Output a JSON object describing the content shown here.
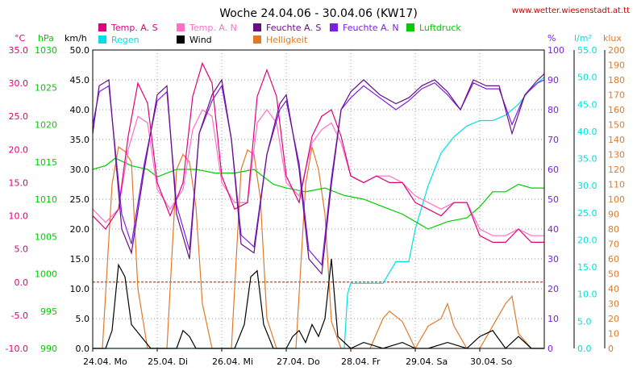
{
  "header": {
    "title": "Woche 24.04.06 - 30.04.06 (KW17)",
    "url": "www.wetter.wiesenstadt.at.tt"
  },
  "colors": {
    "temp_s": "#e0007a",
    "temp_n": "#ff6fc8",
    "feuchte_s": "#6a0e86",
    "feuchte_n": "#7a1ee6",
    "luftdruck": "#00cc00",
    "regen": "#00e0e0",
    "wind": "#000000",
    "helligkeit": "#e07a2a",
    "zero_line": "#cc0000",
    "grid": "#999999"
  },
  "chart_data": {
    "type": "line",
    "axes": {
      "temp": {
        "unit": "°C",
        "range": [
          -10,
          35
        ],
        "step": 5,
        "ticks": [
          "35.0",
          "30.0",
          "25.0",
          "20.0",
          "15.0",
          "10.0",
          "5.0",
          "0.0",
          "-5.0",
          "-10.0"
        ]
      },
      "pressure": {
        "unit": "hPa",
        "range": [
          990,
          1030
        ],
        "step": 5,
        "ticks": [
          "1030",
          "1025",
          "1020",
          "1015",
          "1010",
          "1005",
          "1000",
          "995",
          "990"
        ]
      },
      "wind": {
        "unit": "km/h",
        "range": [
          0,
          50
        ],
        "step": 5,
        "ticks": [
          "50.0",
          "45.0",
          "40.0",
          "35.0",
          "30.0",
          "25.0",
          "20.0",
          "15.0",
          "10.0",
          "5.0",
          "0.0"
        ]
      },
      "humidity": {
        "unit": "%",
        "range": [
          0,
          100
        ],
        "step": 10,
        "ticks": [
          "100",
          "90",
          "80",
          "70",
          "60",
          "50",
          "40",
          "30",
          "20",
          "10",
          "0"
        ]
      },
      "rain": {
        "unit": "l/m²",
        "range": [
          0,
          55
        ],
        "step": 5,
        "ticks": [
          "55.0",
          "50.0",
          "45.0",
          "40.0",
          "35.0",
          "30.0",
          "25.0",
          "20.0",
          "15.0",
          "10.0",
          "5.0",
          "0.0"
        ]
      },
      "light": {
        "unit": "klux",
        "range": [
          0,
          200
        ],
        "step": 10,
        "ticks": [
          "200",
          "190",
          "180",
          "170",
          "160",
          "150",
          "140",
          "130",
          "120",
          "110",
          "100",
          "90",
          "80",
          "70",
          "60",
          "50",
          "40",
          "30",
          "20",
          "10",
          "0"
        ]
      }
    },
    "days": [
      "24.04. Mo",
      "25.04. Di",
      "26.04. Mi",
      "27.04. Do",
      "28.04. Fr",
      "29.04. Sa",
      "30.04. So"
    ],
    "legend": [
      "Temp. A. S",
      "Temp. A. N",
      "Feuchte A. S",
      "Feuchte A. N",
      "Luftdruck",
      "Regen",
      "Wind",
      "Helligkeit"
    ],
    "grid": true,
    "series": [
      {
        "name": "Temp. A. S",
        "axis": "temp",
        "color": "#e0007a",
        "x": [
          0,
          0.2,
          0.4,
          0.55,
          0.7,
          0.85,
          1.0,
          1.2,
          1.4,
          1.55,
          1.7,
          1.85,
          2.0,
          2.2,
          2.4,
          2.55,
          2.7,
          2.85,
          3.0,
          3.2,
          3.4,
          3.55,
          3.7,
          3.85,
          4.0,
          4.2,
          4.4,
          4.6,
          4.8,
          5.0,
          5.2,
          5.4,
          5.6,
          5.8,
          6.0,
          6.2,
          6.4,
          6.6,
          6.8,
          7.0
        ],
        "y": [
          10,
          8,
          11,
          22,
          30,
          27,
          15,
          10,
          15,
          28,
          33,
          30,
          16,
          11,
          12,
          28,
          32,
          28,
          16,
          12,
          22,
          25,
          26,
          22,
          16,
          15,
          16,
          15,
          15,
          12,
          11,
          10,
          12,
          12,
          7,
          6,
          6,
          8,
          6,
          6
        ]
      },
      {
        "name": "Temp. A. N",
        "axis": "temp",
        "color": "#ff6fc8",
        "x": [
          0,
          0.2,
          0.4,
          0.55,
          0.7,
          0.85,
          1.0,
          1.2,
          1.4,
          1.55,
          1.7,
          1.85,
          2.0,
          2.2,
          2.4,
          2.55,
          2.7,
          2.85,
          3.0,
          3.2,
          3.4,
          3.55,
          3.7,
          3.85,
          4.0,
          4.2,
          4.4,
          4.6,
          4.8,
          5.0,
          5.2,
          5.4,
          5.6,
          5.8,
          6.0,
          6.2,
          6.4,
          6.6,
          6.8,
          7.0
        ],
        "y": [
          11,
          9,
          11,
          20,
          25,
          24,
          14,
          11,
          14,
          23,
          26,
          25,
          15,
          12,
          12,
          24,
          26,
          24,
          15,
          13,
          21,
          23,
          24,
          21,
          16,
          15,
          16,
          16,
          15,
          13,
          12,
          11,
          12,
          12,
          8,
          7,
          7,
          8,
          7,
          7
        ]
      },
      {
        "name": "Feuchte A. S",
        "axis": "humidity",
        "color": "#6a0e86",
        "x": [
          0,
          0.1,
          0.25,
          0.45,
          0.6,
          0.8,
          1.0,
          1.15,
          1.3,
          1.5,
          1.65,
          1.85,
          2.0,
          2.15,
          2.3,
          2.5,
          2.7,
          2.9,
          3.0,
          3.2,
          3.35,
          3.55,
          3.7,
          3.85,
          4.0,
          4.2,
          4.45,
          4.7,
          4.9,
          5.1,
          5.3,
          5.5,
          5.7,
          5.9,
          6.1,
          6.3,
          6.5,
          6.7,
          6.9,
          7.0
        ],
        "y": [
          72,
          88,
          90,
          40,
          32,
          60,
          85,
          88,
          45,
          30,
          72,
          85,
          90,
          70,
          35,
          32,
          65,
          82,
          85,
          60,
          30,
          25,
          55,
          80,
          86,
          90,
          85,
          82,
          84,
          88,
          90,
          86,
          80,
          90,
          88,
          88,
          72,
          85,
          90,
          92
        ]
      },
      {
        "name": "Feuchte A. N",
        "axis": "humidity",
        "color": "#7a1ee6",
        "x": [
          0,
          0.1,
          0.25,
          0.45,
          0.6,
          0.8,
          1.0,
          1.15,
          1.3,
          1.5,
          1.65,
          1.85,
          2.0,
          2.15,
          2.3,
          2.5,
          2.7,
          2.9,
          3.0,
          3.2,
          3.35,
          3.55,
          3.7,
          3.85,
          4.0,
          4.2,
          4.45,
          4.7,
          4.9,
          5.1,
          5.3,
          5.5,
          5.7,
          5.9,
          6.1,
          6.3,
          6.5,
          6.7,
          6.9,
          7.0
        ],
        "y": [
          75,
          86,
          88,
          45,
          35,
          62,
          83,
          86,
          48,
          33,
          72,
          83,
          88,
          70,
          38,
          34,
          65,
          80,
          83,
          62,
          33,
          28,
          57,
          80,
          84,
          88,
          84,
          80,
          83,
          87,
          89,
          85,
          80,
          89,
          87,
          87,
          75,
          85,
          89,
          90
        ]
      },
      {
        "name": "Luftdruck",
        "axis": "pressure",
        "color": "#00cc00",
        "x": [
          0,
          0.2,
          0.35,
          0.6,
          0.85,
          1.0,
          1.3,
          1.6,
          1.9,
          2.2,
          2.5,
          2.8,
          3.0,
          3.3,
          3.6,
          3.9,
          4.2,
          4.5,
          4.8,
          5.0,
          5.2,
          5.5,
          5.8,
          6.0,
          6.2,
          6.4,
          6.6,
          6.8,
          7.0
        ],
        "y": [
          1014,
          1014.5,
          1015.5,
          1014.5,
          1014,
          1013,
          1014,
          1014,
          1013.5,
          1013.5,
          1014,
          1012,
          1011.5,
          1011,
          1011.5,
          1010.5,
          1010,
          1009,
          1008,
          1007,
          1006,
          1007,
          1007.5,
          1009,
          1011,
          1011,
          1012,
          1011.5,
          1011.5
        ]
      },
      {
        "name": "Regen",
        "axis": "rain",
        "color": "#00e0e0",
        "x": [
          0,
          3.9,
          3.95,
          4.0,
          4.1,
          4.3,
          4.5,
          4.7,
          4.8,
          4.9,
          5.0,
          5.1,
          5.2,
          5.3,
          5.4,
          5.6,
          5.8,
          6.0,
          6.2,
          6.4,
          6.6,
          6.8,
          7.0
        ],
        "y": [
          0,
          0,
          10,
          12,
          12,
          12,
          12,
          16,
          16,
          16,
          22,
          26,
          30,
          33,
          36,
          39,
          41,
          42,
          42,
          43,
          45,
          48,
          50
        ]
      },
      {
        "name": "Wind",
        "axis": "wind",
        "color": "#000000",
        "x": [
          0,
          0.2,
          0.3,
          0.4,
          0.5,
          0.6,
          0.75,
          0.9,
          1.0,
          1.2,
          1.3,
          1.4,
          1.5,
          1.6,
          1.8,
          2.0,
          2.2,
          2.35,
          2.45,
          2.55,
          2.65,
          2.8,
          3.0,
          3.1,
          3.2,
          3.3,
          3.4,
          3.5,
          3.6,
          3.7,
          3.8,
          4.0,
          4.2,
          4.5,
          4.8,
          5.0,
          5.2,
          5.5,
          5.8,
          6.0,
          6.2,
          6.4,
          6.6,
          6.8,
          7.0
        ],
        "y": [
          0,
          0,
          3,
          14,
          12,
          4,
          2,
          0,
          0,
          0,
          0,
          3,
          2,
          0,
          0,
          0,
          0,
          4,
          12,
          13,
          4,
          0,
          0,
          2,
          3,
          1,
          4,
          2,
          5,
          15,
          2,
          0,
          1,
          0,
          1,
          0,
          0,
          1,
          0,
          2,
          3,
          0,
          2,
          0,
          0
        ]
      },
      {
        "name": "Helligkeit",
        "axis": "light",
        "color": "#e07a2a",
        "x": [
          0,
          0.15,
          0.3,
          0.4,
          0.5,
          0.6,
          0.7,
          0.85,
          1.0,
          1.15,
          1.3,
          1.4,
          1.5,
          1.6,
          1.7,
          1.85,
          2.0,
          2.15,
          2.3,
          2.4,
          2.5,
          2.6,
          2.7,
          2.85,
          3.0,
          3.15,
          3.3,
          3.4,
          3.5,
          3.6,
          3.7,
          3.85,
          4.0,
          4.3,
          4.5,
          4.6,
          4.8,
          5.0,
          5.2,
          5.4,
          5.5,
          5.6,
          5.8,
          6.0,
          6.2,
          6.4,
          6.5,
          6.6,
          6.8,
          7.0
        ],
        "y": [
          0,
          0,
          110,
          135,
          132,
          125,
          40,
          0,
          0,
          0,
          120,
          130,
          125,
          95,
          30,
          0,
          0,
          0,
          120,
          133,
          130,
          100,
          20,
          0,
          0,
          0,
          110,
          135,
          120,
          90,
          18,
          0,
          0,
          0,
          20,
          25,
          18,
          0,
          15,
          20,
          30,
          15,
          0,
          0,
          15,
          30,
          35,
          10,
          0,
          0
        ]
      }
    ]
  }
}
